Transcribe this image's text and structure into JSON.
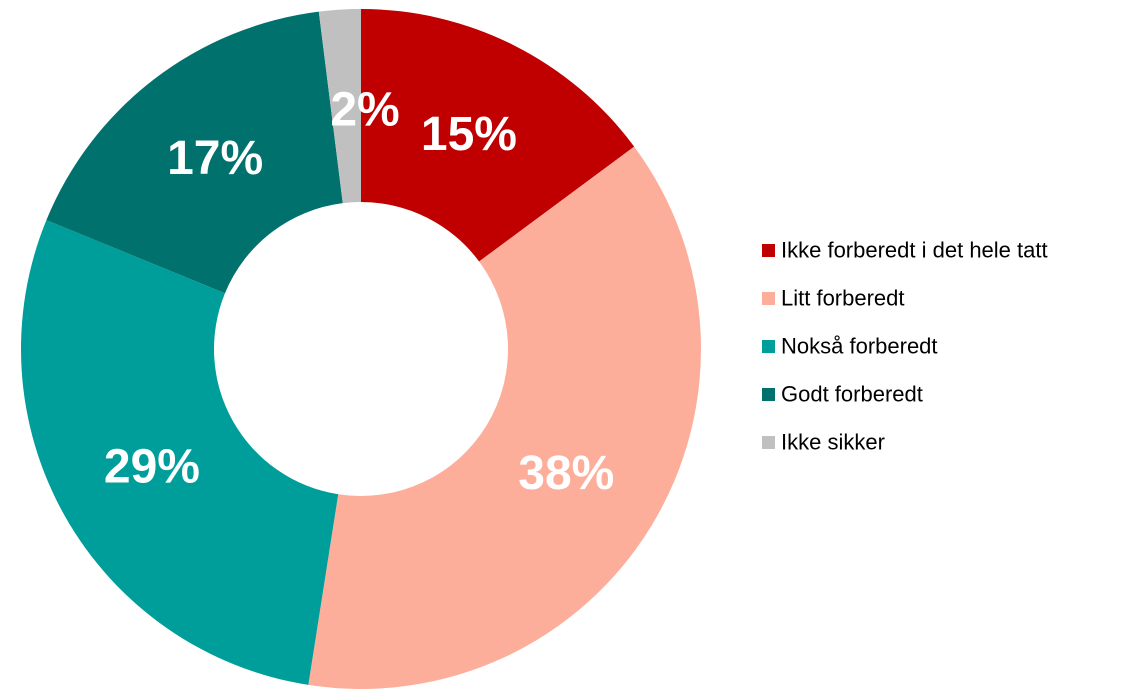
{
  "chart_data": {
    "type": "donut",
    "categories": [
      "Ikke forberedt i det hele tatt",
      "Litt forberedt",
      "Nokså forberedt",
      "Godt forberedt",
      "Ikke sikker"
    ],
    "values": [
      15,
      38,
      29,
      17,
      2
    ],
    "value_labels": [
      "15%",
      "38%",
      "29%",
      "17%",
      "2%"
    ],
    "colors": [
      "#c00000",
      "#fcae9b",
      "#009e9b",
      "#00716d",
      "#c0c0c0"
    ],
    "legend": "right"
  }
}
